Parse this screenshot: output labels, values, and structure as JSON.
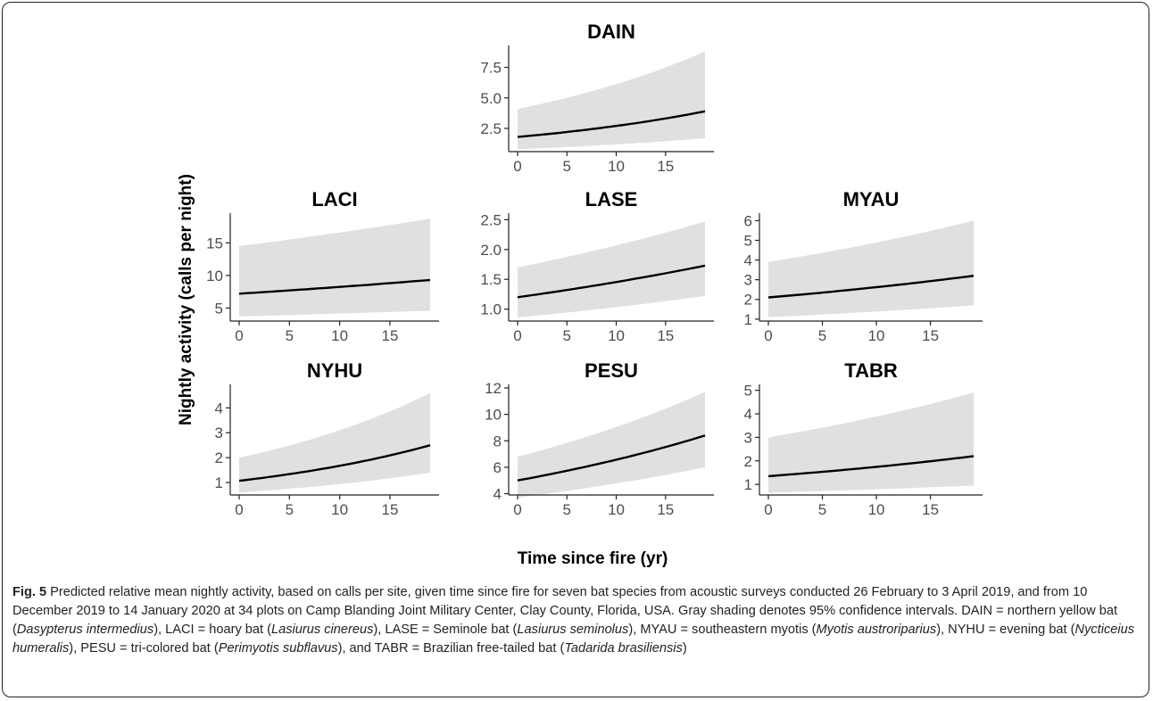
{
  "figure": {
    "ylabel": "Nightly activity (calls per night)",
    "xlabel": "Time since fire (yr)"
  },
  "caption": {
    "label": "Fig. 5",
    "text": "Predicted relative mean nightly activity, based on calls per site, given time since fire for seven bat species from acoustic surveys conducted 26 February to 3 April 2019, and from 10 December 2019 to 14 January 2020 at 34 plots on Camp Blanding Joint Military Center, Clay County, Florida, USA. Gray shading denotes 95% confidence intervals. DAIN = northern yellow bat (Dasypterus intermedius), LACI = hoary bat (Lasiurus cinereus), LASE = Seminole bat (Lasiurus seminolus), MYAU = southeastern myotis (Myotis austroriparius), NYHU = evening bat (Nycticeius humeralis), PESU = tri-colored bat (Perimyotis subflavus), and TABR = Brazilian free-tailed bat (Tadarida brasiliensis)"
  },
  "colors": {
    "band": "#e0e0e0",
    "line": "#000000",
    "axis": "#222222",
    "tick_text": "#4d4d4d"
  },
  "chart_data": [
    {
      "type": "line",
      "title": "DAIN",
      "xlim": [
        0,
        19
      ],
      "ylim": [
        0.6,
        9.0
      ],
      "x_ticks": [
        0,
        5,
        10,
        15
      ],
      "y_ticks": [
        2.5,
        5.0,
        7.5
      ],
      "y_tick_labels": [
        "2.5",
        "5.0",
        "7.5"
      ],
      "x": [
        0,
        19
      ],
      "line_start": 1.8,
      "line_end": 3.9,
      "lower_start": 0.8,
      "lower_end": 1.7,
      "upper_start": 4.1,
      "upper_end": 8.8
    },
    {
      "type": "line",
      "title": "LACI",
      "xlim": [
        0,
        19
      ],
      "ylim": [
        3.0,
        19.0
      ],
      "x_ticks": [
        0,
        5,
        10,
        15
      ],
      "y_ticks": [
        5,
        10,
        15
      ],
      "y_tick_labels": [
        "5",
        "10",
        "15"
      ],
      "x": [
        0,
        19
      ],
      "line_start": 7.2,
      "line_end": 9.3,
      "lower_start": 3.7,
      "lower_end": 4.6,
      "upper_start": 14.5,
      "upper_end": 18.7
    },
    {
      "type": "line",
      "title": "LASE",
      "xlim": [
        0,
        19
      ],
      "ylim": [
        0.8,
        2.55
      ],
      "x_ticks": [
        0,
        5,
        10,
        15
      ],
      "y_ticks": [
        1.0,
        1.5,
        2.0,
        2.5
      ],
      "y_tick_labels": [
        "1.0",
        "1.5",
        "2.0",
        "2.5"
      ],
      "x": [
        0,
        19
      ],
      "line_start": 1.2,
      "line_end": 1.73,
      "lower_start": 0.86,
      "lower_end": 1.22,
      "upper_start": 1.7,
      "upper_end": 2.47
    },
    {
      "type": "line",
      "title": "MYAU",
      "xlim": [
        0,
        19
      ],
      "ylim": [
        0.9,
        6.2
      ],
      "x_ticks": [
        0,
        5,
        10,
        15
      ],
      "y_ticks": [
        1,
        2,
        3,
        4,
        5,
        6
      ],
      "y_tick_labels": [
        "1",
        "2",
        "3",
        "4",
        "5",
        "6"
      ],
      "x": [
        0,
        19
      ],
      "line_start": 2.1,
      "line_end": 3.2,
      "lower_start": 1.1,
      "lower_end": 1.7,
      "upper_start": 3.9,
      "upper_end": 6.0
    },
    {
      "type": "line",
      "title": "NYHU",
      "xlim": [
        0,
        19
      ],
      "ylim": [
        0.5,
        4.8
      ],
      "x_ticks": [
        0,
        5,
        10,
        15
      ],
      "y_ticks": [
        1,
        2,
        3,
        4
      ],
      "y_tick_labels": [
        "1",
        "2",
        "3",
        "4"
      ],
      "x": [
        0,
        19
      ],
      "line_start": 1.07,
      "line_end": 2.5,
      "lower_start": 0.6,
      "lower_end": 1.4,
      "upper_start": 2.0,
      "upper_end": 4.6
    },
    {
      "type": "line",
      "title": "PESU",
      "xlim": [
        0,
        19
      ],
      "ylim": [
        3.9,
        12.0
      ],
      "x_ticks": [
        0,
        5,
        10,
        15
      ],
      "y_ticks": [
        4,
        6,
        8,
        10,
        12
      ],
      "y_tick_labels": [
        "4",
        "6",
        "8",
        "10",
        "12"
      ],
      "x": [
        0,
        19
      ],
      "line_start": 5.0,
      "line_end": 8.4,
      "lower_start": 3.7,
      "lower_end": 6.0,
      "upper_start": 6.8,
      "upper_end": 11.7
    },
    {
      "type": "line",
      "title": "TABR",
      "xlim": [
        0,
        19
      ],
      "ylim": [
        0.55,
        5.1
      ],
      "x_ticks": [
        0,
        5,
        10,
        15
      ],
      "y_ticks": [
        1,
        2,
        3,
        4,
        5
      ],
      "y_tick_labels": [
        "1",
        "2",
        "3",
        "4",
        "5"
      ],
      "x": [
        0,
        19
      ],
      "line_start": 1.35,
      "line_end": 2.2,
      "lower_start": 0.65,
      "lower_end": 0.95,
      "upper_start": 3.0,
      "upper_end": 4.9
    }
  ]
}
